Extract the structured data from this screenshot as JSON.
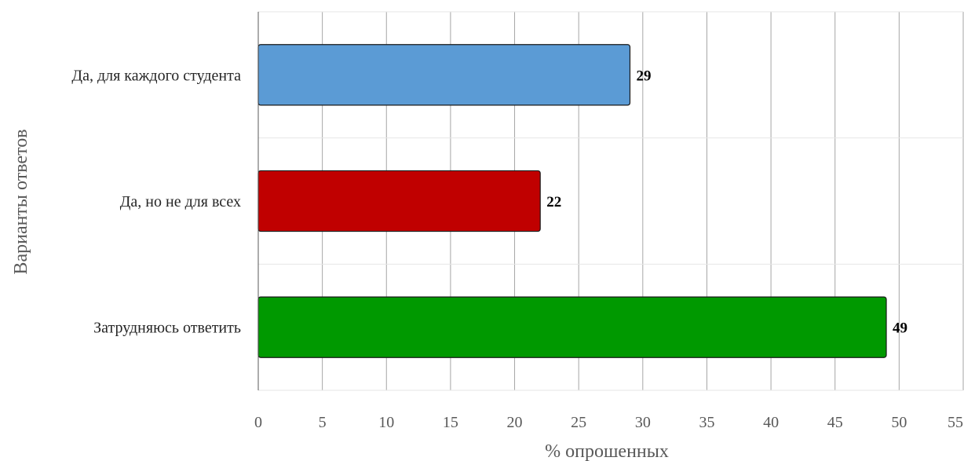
{
  "chart_data": {
    "type": "bar",
    "orientation": "horizontal",
    "categories": [
      "Да, для каждого студента",
      "Да, но не для всех",
      "Затрудняюсь ответить"
    ],
    "values": [
      29,
      22,
      49
    ],
    "colors": [
      "#5b9bd5",
      "#c00000",
      "#009900"
    ],
    "xlabel": "% опрошенных",
    "ylabel": "Варианты ответов",
    "xlim": [
      0,
      55
    ],
    "xticks": [
      0,
      5,
      10,
      15,
      20,
      25,
      30,
      35,
      40,
      45,
      50,
      55
    ],
    "grid": true,
    "legend": "none"
  }
}
